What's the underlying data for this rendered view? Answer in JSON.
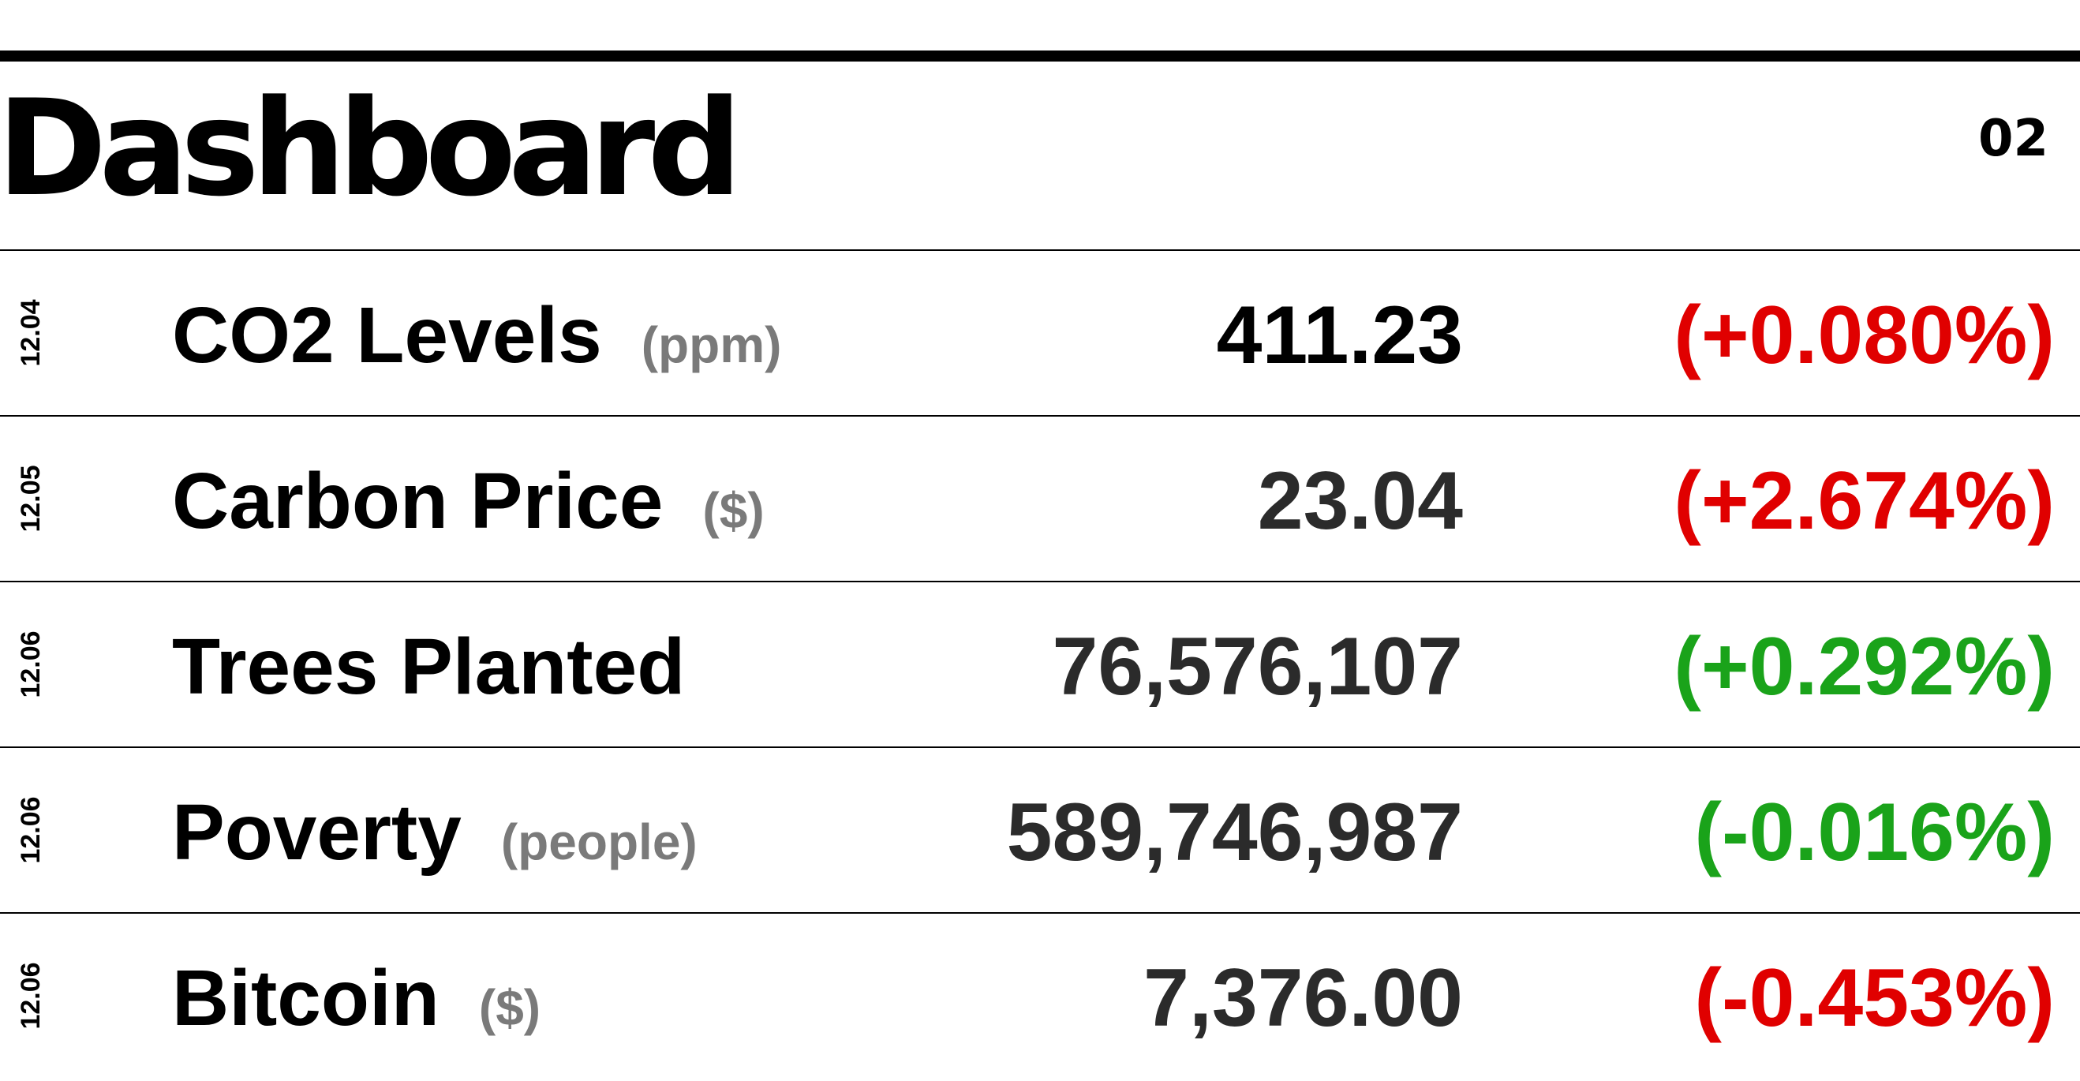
{
  "header": {
    "title": "Dashboard",
    "page_number": "02"
  },
  "colors": {
    "up": "#e00000",
    "down": "#1aa31a"
  },
  "rows": [
    {
      "date": "12.04",
      "name": "CO2 Levels",
      "unit": "(ppm)",
      "value": "411.23",
      "change": "(+0.080%)",
      "change_color": "#e00000"
    },
    {
      "date": "12.05",
      "name": "Carbon Price",
      "unit": "($)",
      "value": "23.04",
      "change": "(+2.674%)",
      "change_color": "#e00000"
    },
    {
      "date": "12.06",
      "name": "Trees Planted",
      "unit": "",
      "value": "76,576,107",
      "change": "(+0.292%)",
      "change_color": "#1aa31a"
    },
    {
      "date": "12.06",
      "name": "Poverty",
      "unit": "(people)",
      "value": "589,746,987",
      "change": "(-0.016%)",
      "change_color": "#1aa31a"
    },
    {
      "date": "12.06",
      "name": "Bitcoin",
      "unit": "($)",
      "value": "7,376.00",
      "change": "(-0.453%)",
      "change_color": "#e00000"
    }
  ]
}
